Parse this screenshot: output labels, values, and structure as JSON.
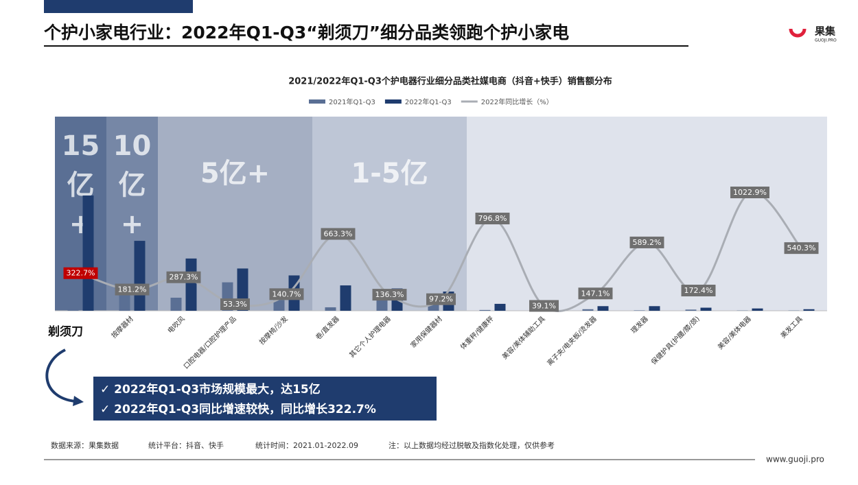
{
  "header": {
    "title": "个护小家电行业：2022年Q1-Q3“剃须刀”细分品类领跑个护小家电",
    "logo": "果集",
    "logo_sub": "GUOJI.PRO"
  },
  "chart_data": {
    "type": "bar_line",
    "title": "2021/2022年Q1-Q3个护电器行业细分品类社媒电商（抖音+快手）销售额分布",
    "categories": [
      "剃须刀",
      "按摩器材",
      "电吹风",
      "口腔电器/口腔护理产品",
      "按摩椅/沙发",
      "卷/直发器",
      "其它个人护理电器",
      "家用保健器材",
      "体重秤/健康秤",
      "美容/美体辅助工具",
      "离子夹/电夹板/烫发器",
      "理发器",
      "保健护具(护腰/膝/颈)",
      "美容/美体电器",
      "美发工具"
    ],
    "series": [
      {
        "name": "2021年Q1-Q3",
        "color": "#5a6f94",
        "values": [
          3.75,
          3.5,
          1.7,
          3.7,
          1.4,
          0.45,
          1.6,
          1.6,
          0.1,
          0.15,
          0.2,
          0.05,
          0.15,
          0.03,
          0.03
        ]
      },
      {
        "name": "2022年Q1-Q3",
        "color": "#1f3c6e",
        "values": [
          15,
          9.1,
          6.8,
          5.5,
          4.6,
          3.3,
          2.9,
          2.5,
          0.9,
          0.2,
          0.6,
          0.6,
          0.4,
          0.3,
          0.2
        ]
      },
      {
        "name": "2022年同比增长（%）",
        "color": "#a9adb4",
        "type": "line",
        "values": [
          322.7,
          181.2,
          287.3,
          53.3,
          140.7,
          663.3,
          136.3,
          97.2,
          796.8,
          39.1,
          147.1,
          589.2,
          172.4,
          1022.9,
          540.3
        ],
        "value_labels": [
          "322.7%",
          "181.2%",
          "287.3%",
          "53.3%",
          "140.7%",
          "663.3%",
          "136.3%",
          "97.2%",
          "796.8%",
          "39.1%",
          "147.1%",
          "589.2%",
          "172.4%",
          "1022.9%",
          "540.3%"
        ]
      }
    ],
    "bands": [
      {
        "label": [
          "15",
          "亿",
          "+"
        ]
      },
      {
        "label": [
          "10",
          "亿",
          "+"
        ]
      },
      {
        "label": [
          "5亿+"
        ]
      },
      {
        "label": [
          "1-5亿"
        ]
      }
    ]
  },
  "box": [
    "✓  2022年Q1-Q3市场规模最大，达15亿",
    "✓  2022年Q1-Q3同比增速较快，同比增长322.7%"
  ],
  "footer": {
    "notes": [
      "数据来源：果集数据",
      "统计平台：抖音、快手",
      "统计时间：2021.01-2022.09",
      "注：以上数据均经过脱敏及指数化处理，仅供参考"
    ],
    "url": "www.guoji.pro"
  }
}
